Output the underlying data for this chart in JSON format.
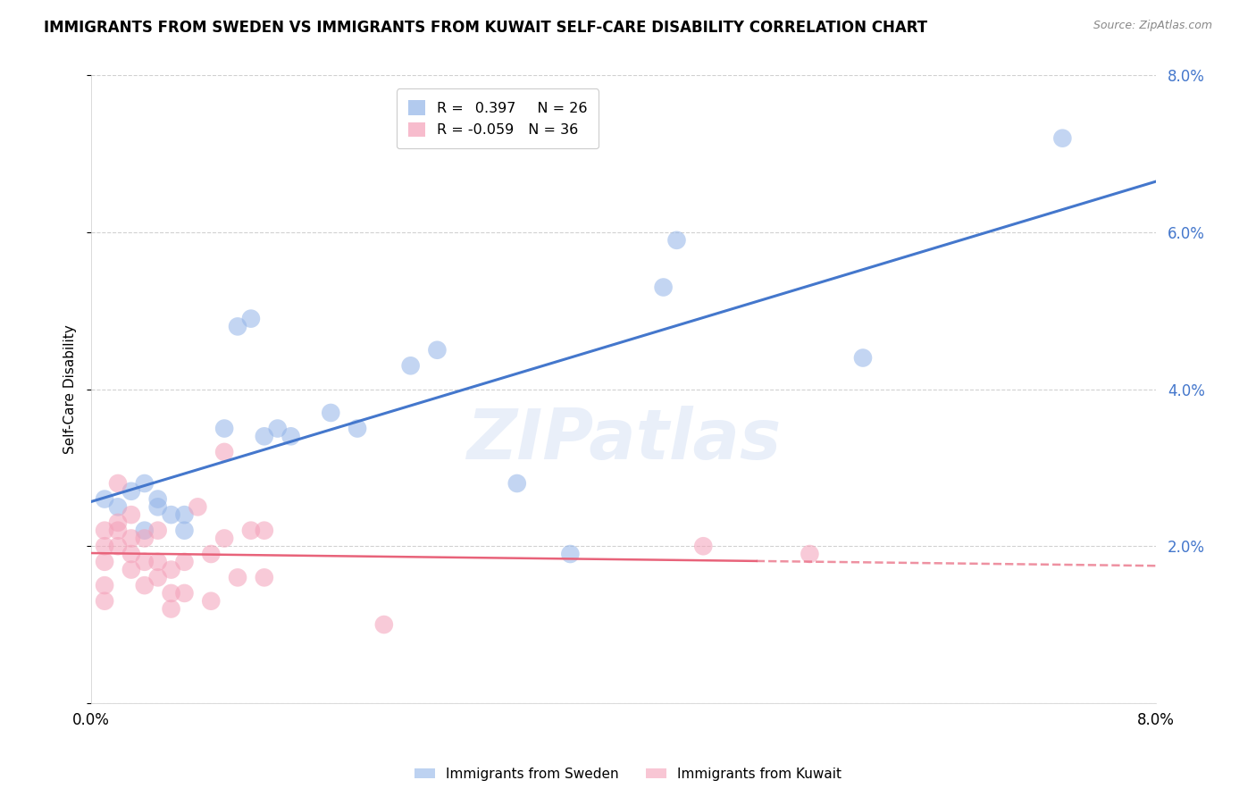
{
  "title": "IMMIGRANTS FROM SWEDEN VS IMMIGRANTS FROM KUWAIT SELF-CARE DISABILITY CORRELATION CHART",
  "source": "Source: ZipAtlas.com",
  "ylabel": "Self-Care Disability",
  "sweden_R": 0.397,
  "sweden_N": 26,
  "kuwait_R": -0.059,
  "kuwait_N": 36,
  "sweden_color": "#92b4e8",
  "kuwait_color": "#f4a0b8",
  "sweden_line_color": "#4477cc",
  "kuwait_line_color": "#e8637a",
  "watermark": "ZIPatlas",
  "sweden_x": [
    0.001,
    0.002,
    0.003,
    0.004,
    0.004,
    0.005,
    0.005,
    0.006,
    0.007,
    0.007,
    0.01,
    0.011,
    0.012,
    0.013,
    0.014,
    0.015,
    0.018,
    0.02,
    0.024,
    0.026,
    0.032,
    0.036,
    0.043,
    0.044,
    0.058,
    0.073
  ],
  "sweden_y": [
    0.026,
    0.025,
    0.027,
    0.022,
    0.028,
    0.025,
    0.026,
    0.024,
    0.022,
    0.024,
    0.035,
    0.048,
    0.049,
    0.034,
    0.035,
    0.034,
    0.037,
    0.035,
    0.043,
    0.045,
    0.028,
    0.019,
    0.053,
    0.059,
    0.044,
    0.072
  ],
  "kuwait_x": [
    0.001,
    0.001,
    0.001,
    0.001,
    0.001,
    0.002,
    0.002,
    0.002,
    0.002,
    0.003,
    0.003,
    0.003,
    0.003,
    0.004,
    0.004,
    0.004,
    0.005,
    0.005,
    0.005,
    0.006,
    0.006,
    0.006,
    0.007,
    0.007,
    0.008,
    0.009,
    0.009,
    0.01,
    0.01,
    0.011,
    0.012,
    0.013,
    0.013,
    0.022,
    0.046,
    0.054
  ],
  "kuwait_y": [
    0.022,
    0.02,
    0.018,
    0.015,
    0.013,
    0.02,
    0.023,
    0.028,
    0.022,
    0.019,
    0.017,
    0.024,
    0.021,
    0.015,
    0.018,
    0.021,
    0.016,
    0.018,
    0.022,
    0.014,
    0.012,
    0.017,
    0.018,
    0.014,
    0.025,
    0.013,
    0.019,
    0.021,
    0.032,
    0.016,
    0.022,
    0.022,
    0.016,
    0.01,
    0.02,
    0.019
  ],
  "xlim": [
    0.0,
    0.08
  ],
  "ylim": [
    0.0,
    0.08
  ],
  "background_color": "#ffffff",
  "grid_color": "#cccccc",
  "title_fontsize": 12,
  "axis_label_fontsize": 11,
  "tick_fontsize": 12,
  "sweden_line_start_y": 0.026,
  "sweden_line_end_y": 0.058,
  "kuwait_line_start_y": 0.021,
  "kuwait_line_end_y": 0.019
}
